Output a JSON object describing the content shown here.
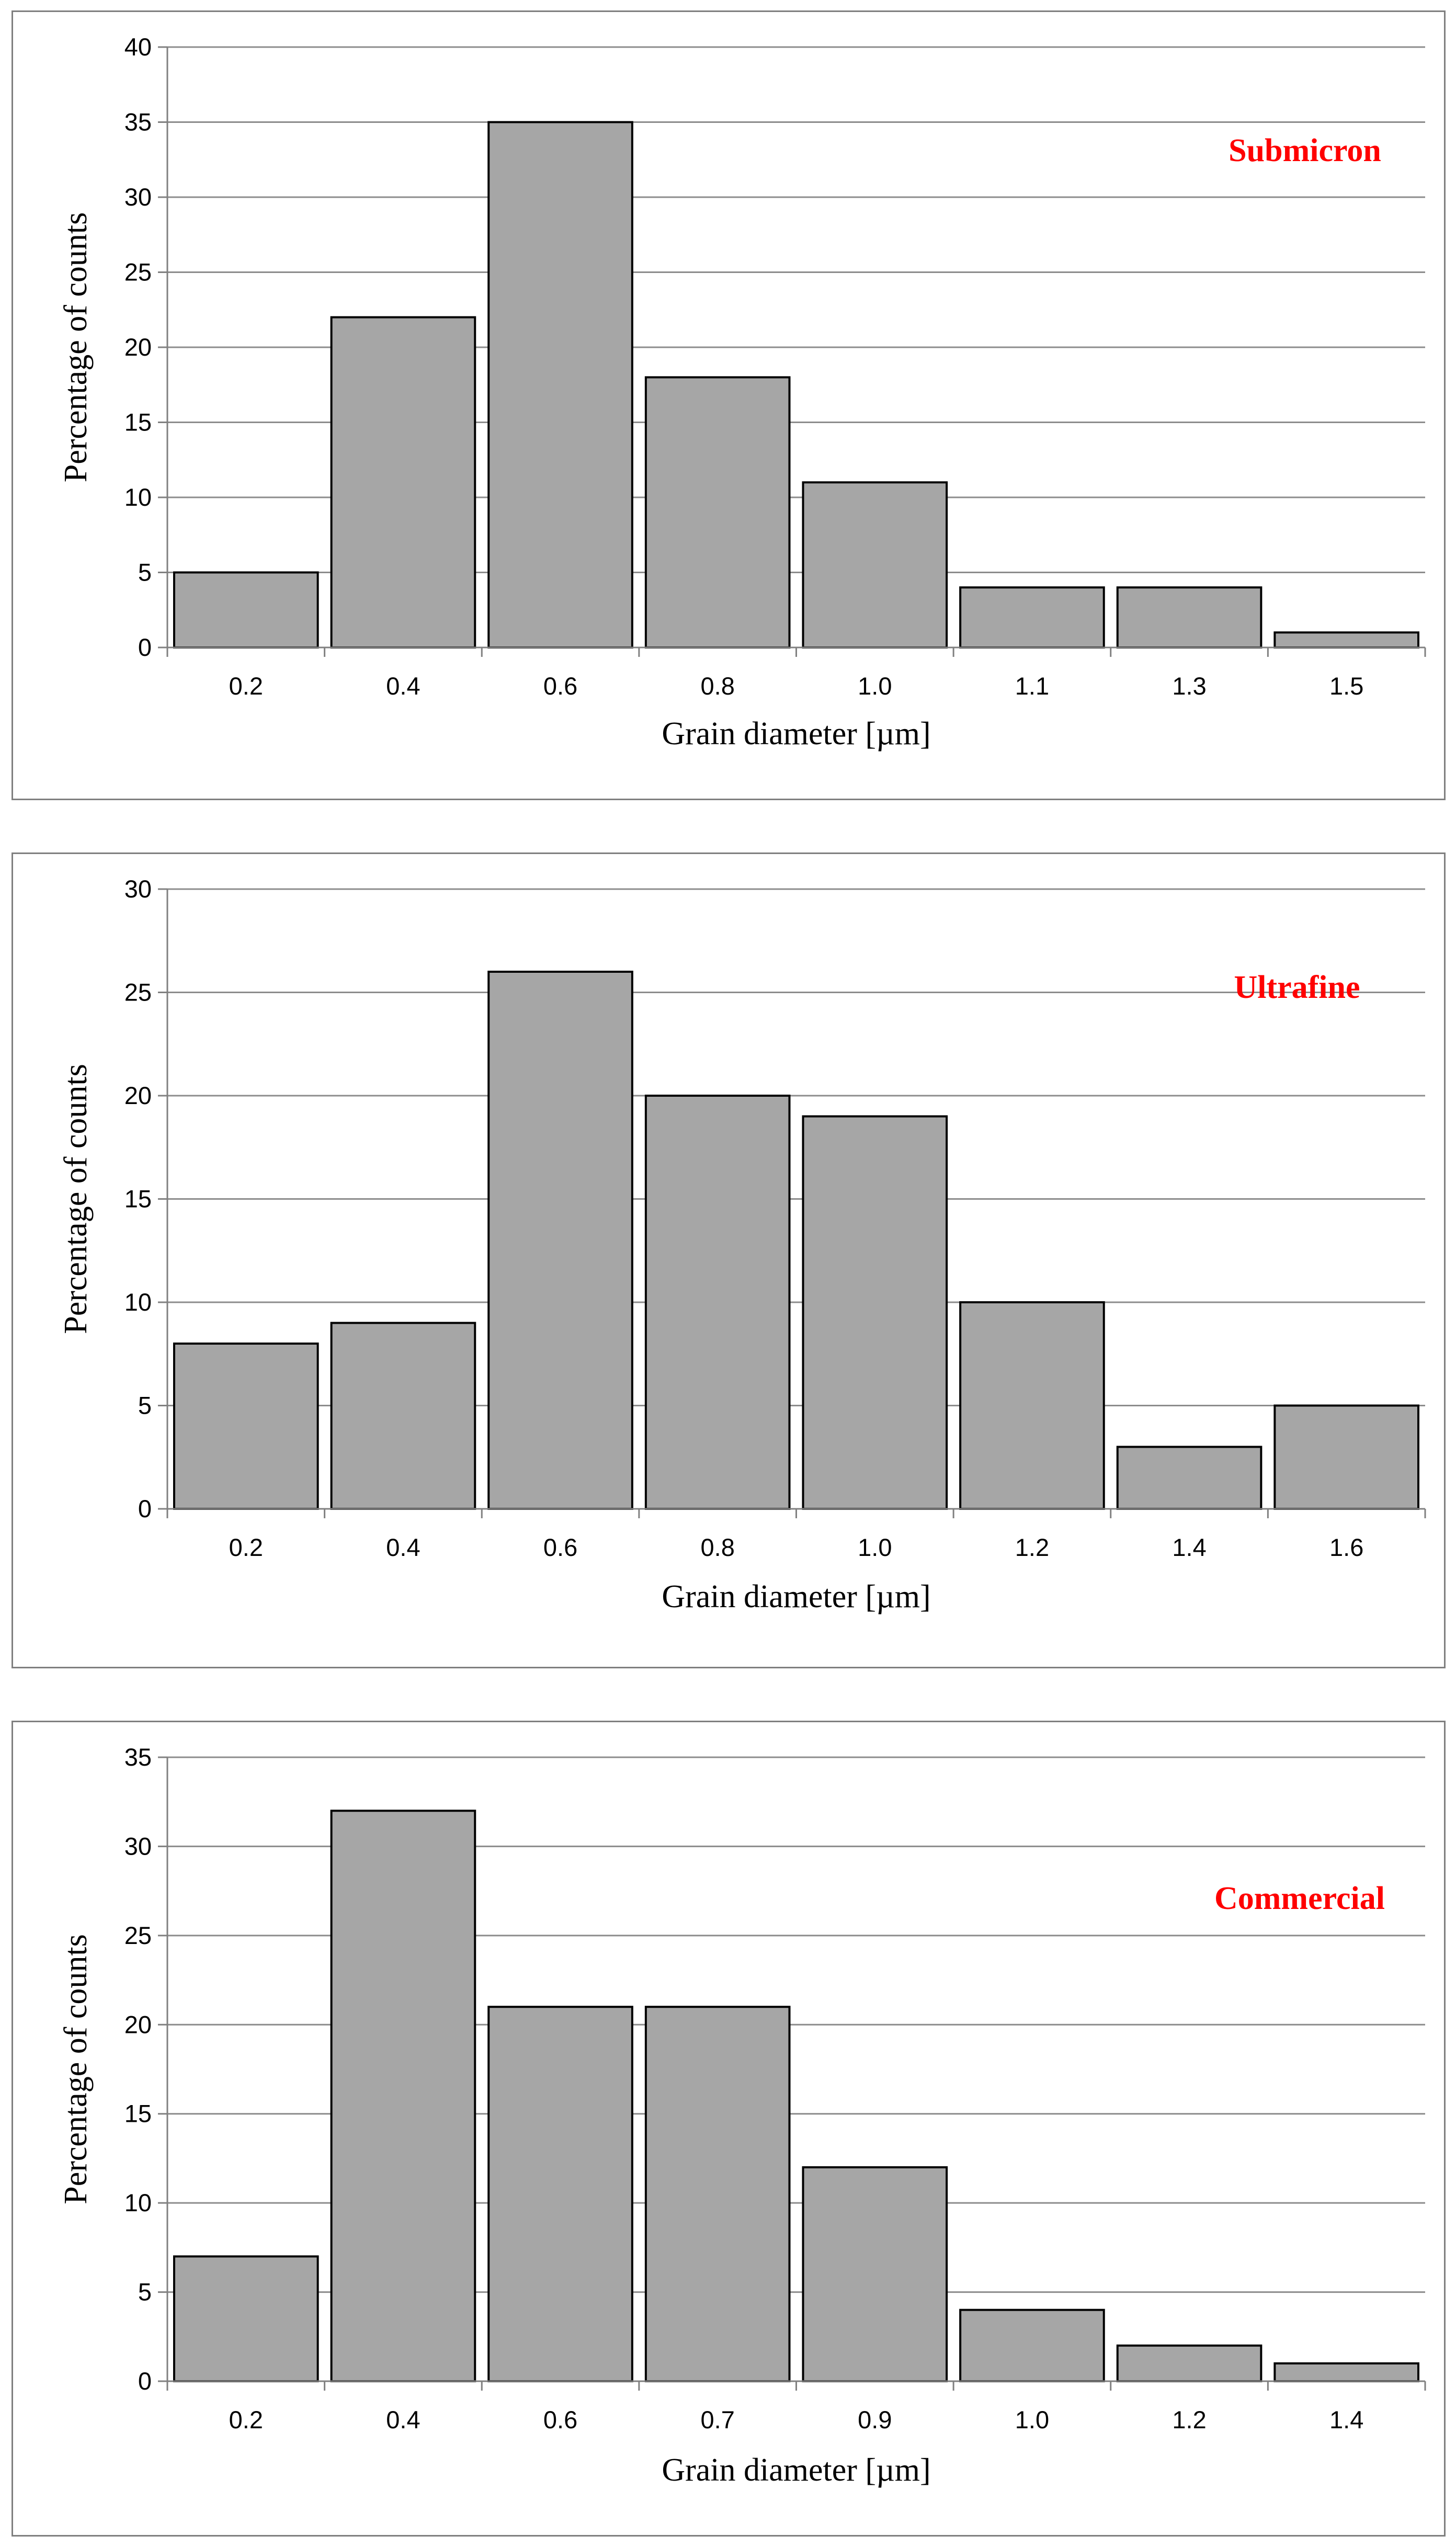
{
  "chart_data": [
    {
      "type": "bar",
      "label": "Submicron",
      "categories": [
        "0.2",
        "0.4",
        "0.6",
        "0.8",
        "1.0",
        "1.1",
        "1.3",
        "1.5"
      ],
      "values": [
        5,
        22,
        35,
        18,
        11,
        4,
        4,
        1
      ],
      "xlabel": "Grain diameter [µm]",
      "ylabel": "Percentage of counts",
      "ylim": [
        0,
        40
      ],
      "yticks": [
        0,
        5,
        10,
        15,
        20,
        25,
        30,
        35,
        40
      ],
      "grid": true,
      "bar_color": "#a6a6a6",
      "label_color": "#ff0000"
    },
    {
      "type": "bar",
      "label": "Ultrafine",
      "categories": [
        "0.2",
        "0.4",
        "0.6",
        "0.8",
        "1.0",
        "1.2",
        "1.4",
        "1.6"
      ],
      "values": [
        8,
        9,
        26,
        20,
        19,
        10,
        3,
        5
      ],
      "xlabel": "Grain diameter [µm]",
      "ylabel": "Percentage of counts",
      "ylim": [
        0,
        30
      ],
      "yticks": [
        0,
        5,
        10,
        15,
        20,
        25,
        30
      ],
      "grid": true,
      "bar_color": "#a6a6a6",
      "label_color": "#ff0000"
    },
    {
      "type": "bar",
      "label": "Commercial",
      "categories": [
        "0.2",
        "0.4",
        "0.6",
        "0.7",
        "0.9",
        "1.0",
        "1.2",
        "1.4"
      ],
      "values": [
        7,
        32,
        21,
        21,
        12,
        4,
        2,
        1
      ],
      "xlabel": "Grain diameter [µm]",
      "ylabel": "Percentage of counts",
      "ylim": [
        0,
        35
      ],
      "yticks": [
        0,
        5,
        10,
        15,
        20,
        25,
        30,
        35
      ],
      "grid": true,
      "bar_color": "#a6a6a6",
      "label_color": "#ff0000"
    }
  ]
}
